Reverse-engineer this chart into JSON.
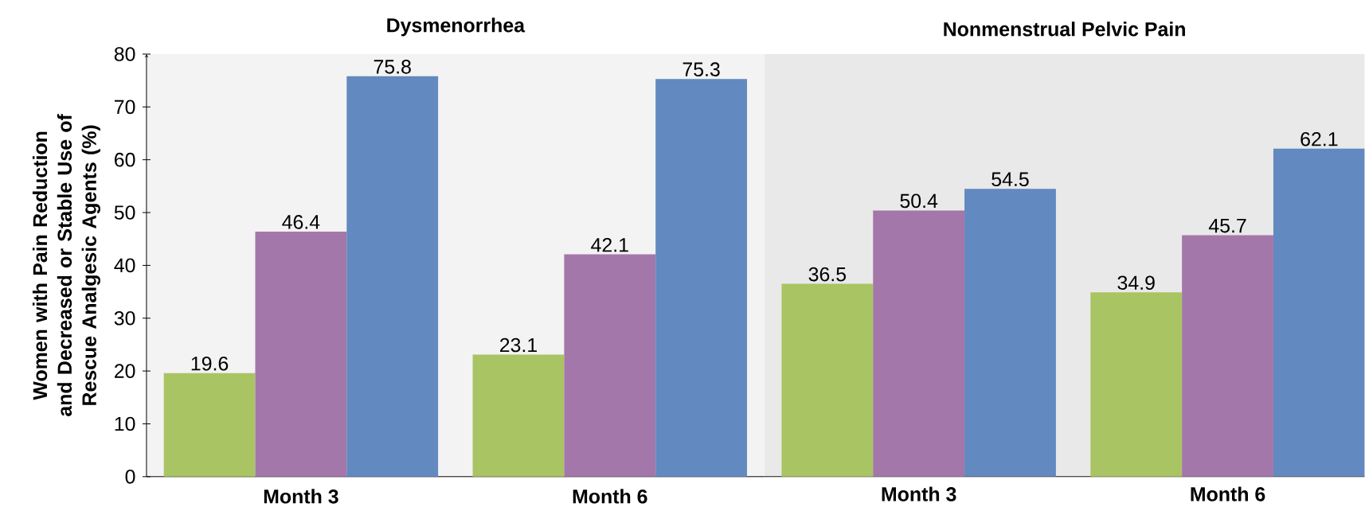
{
  "chart_data": [
    {
      "type": "bar",
      "title": "Dysmenorrhea",
      "ylabel": "Women with Pain Reduction and Decreased or Stable Use of Rescue Analgesic Agents (%)",
      "categories": [
        "Month 3",
        "Month 6"
      ],
      "series": [
        {
          "color": "#a9c462",
          "values": [
            19.6,
            23.1
          ]
        },
        {
          "color": "#a477aa",
          "values": [
            46.4,
            42.1
          ]
        },
        {
          "color": "#6289c0",
          "values": [
            75.8,
            75.3
          ]
        }
      ],
      "ylim": [
        0,
        80
      ],
      "yticks": [
        0,
        10,
        20,
        30,
        40,
        50,
        60,
        70,
        80
      ],
      "data_labels": true
    },
    {
      "type": "bar",
      "title": "Nonmenstrual Pelvic Pain",
      "categories": [
        "Month 3",
        "Month 6"
      ],
      "series": [
        {
          "color": "#a9c462",
          "values": [
            36.5,
            34.9
          ]
        },
        {
          "color": "#a477aa",
          "values": [
            50.4,
            45.7
          ]
        },
        {
          "color": "#6289c0",
          "values": [
            54.5,
            62.1
          ]
        }
      ],
      "ylim": [
        0,
        80
      ],
      "tick_labels": "x",
      "data_labels": true
    }
  ]
}
